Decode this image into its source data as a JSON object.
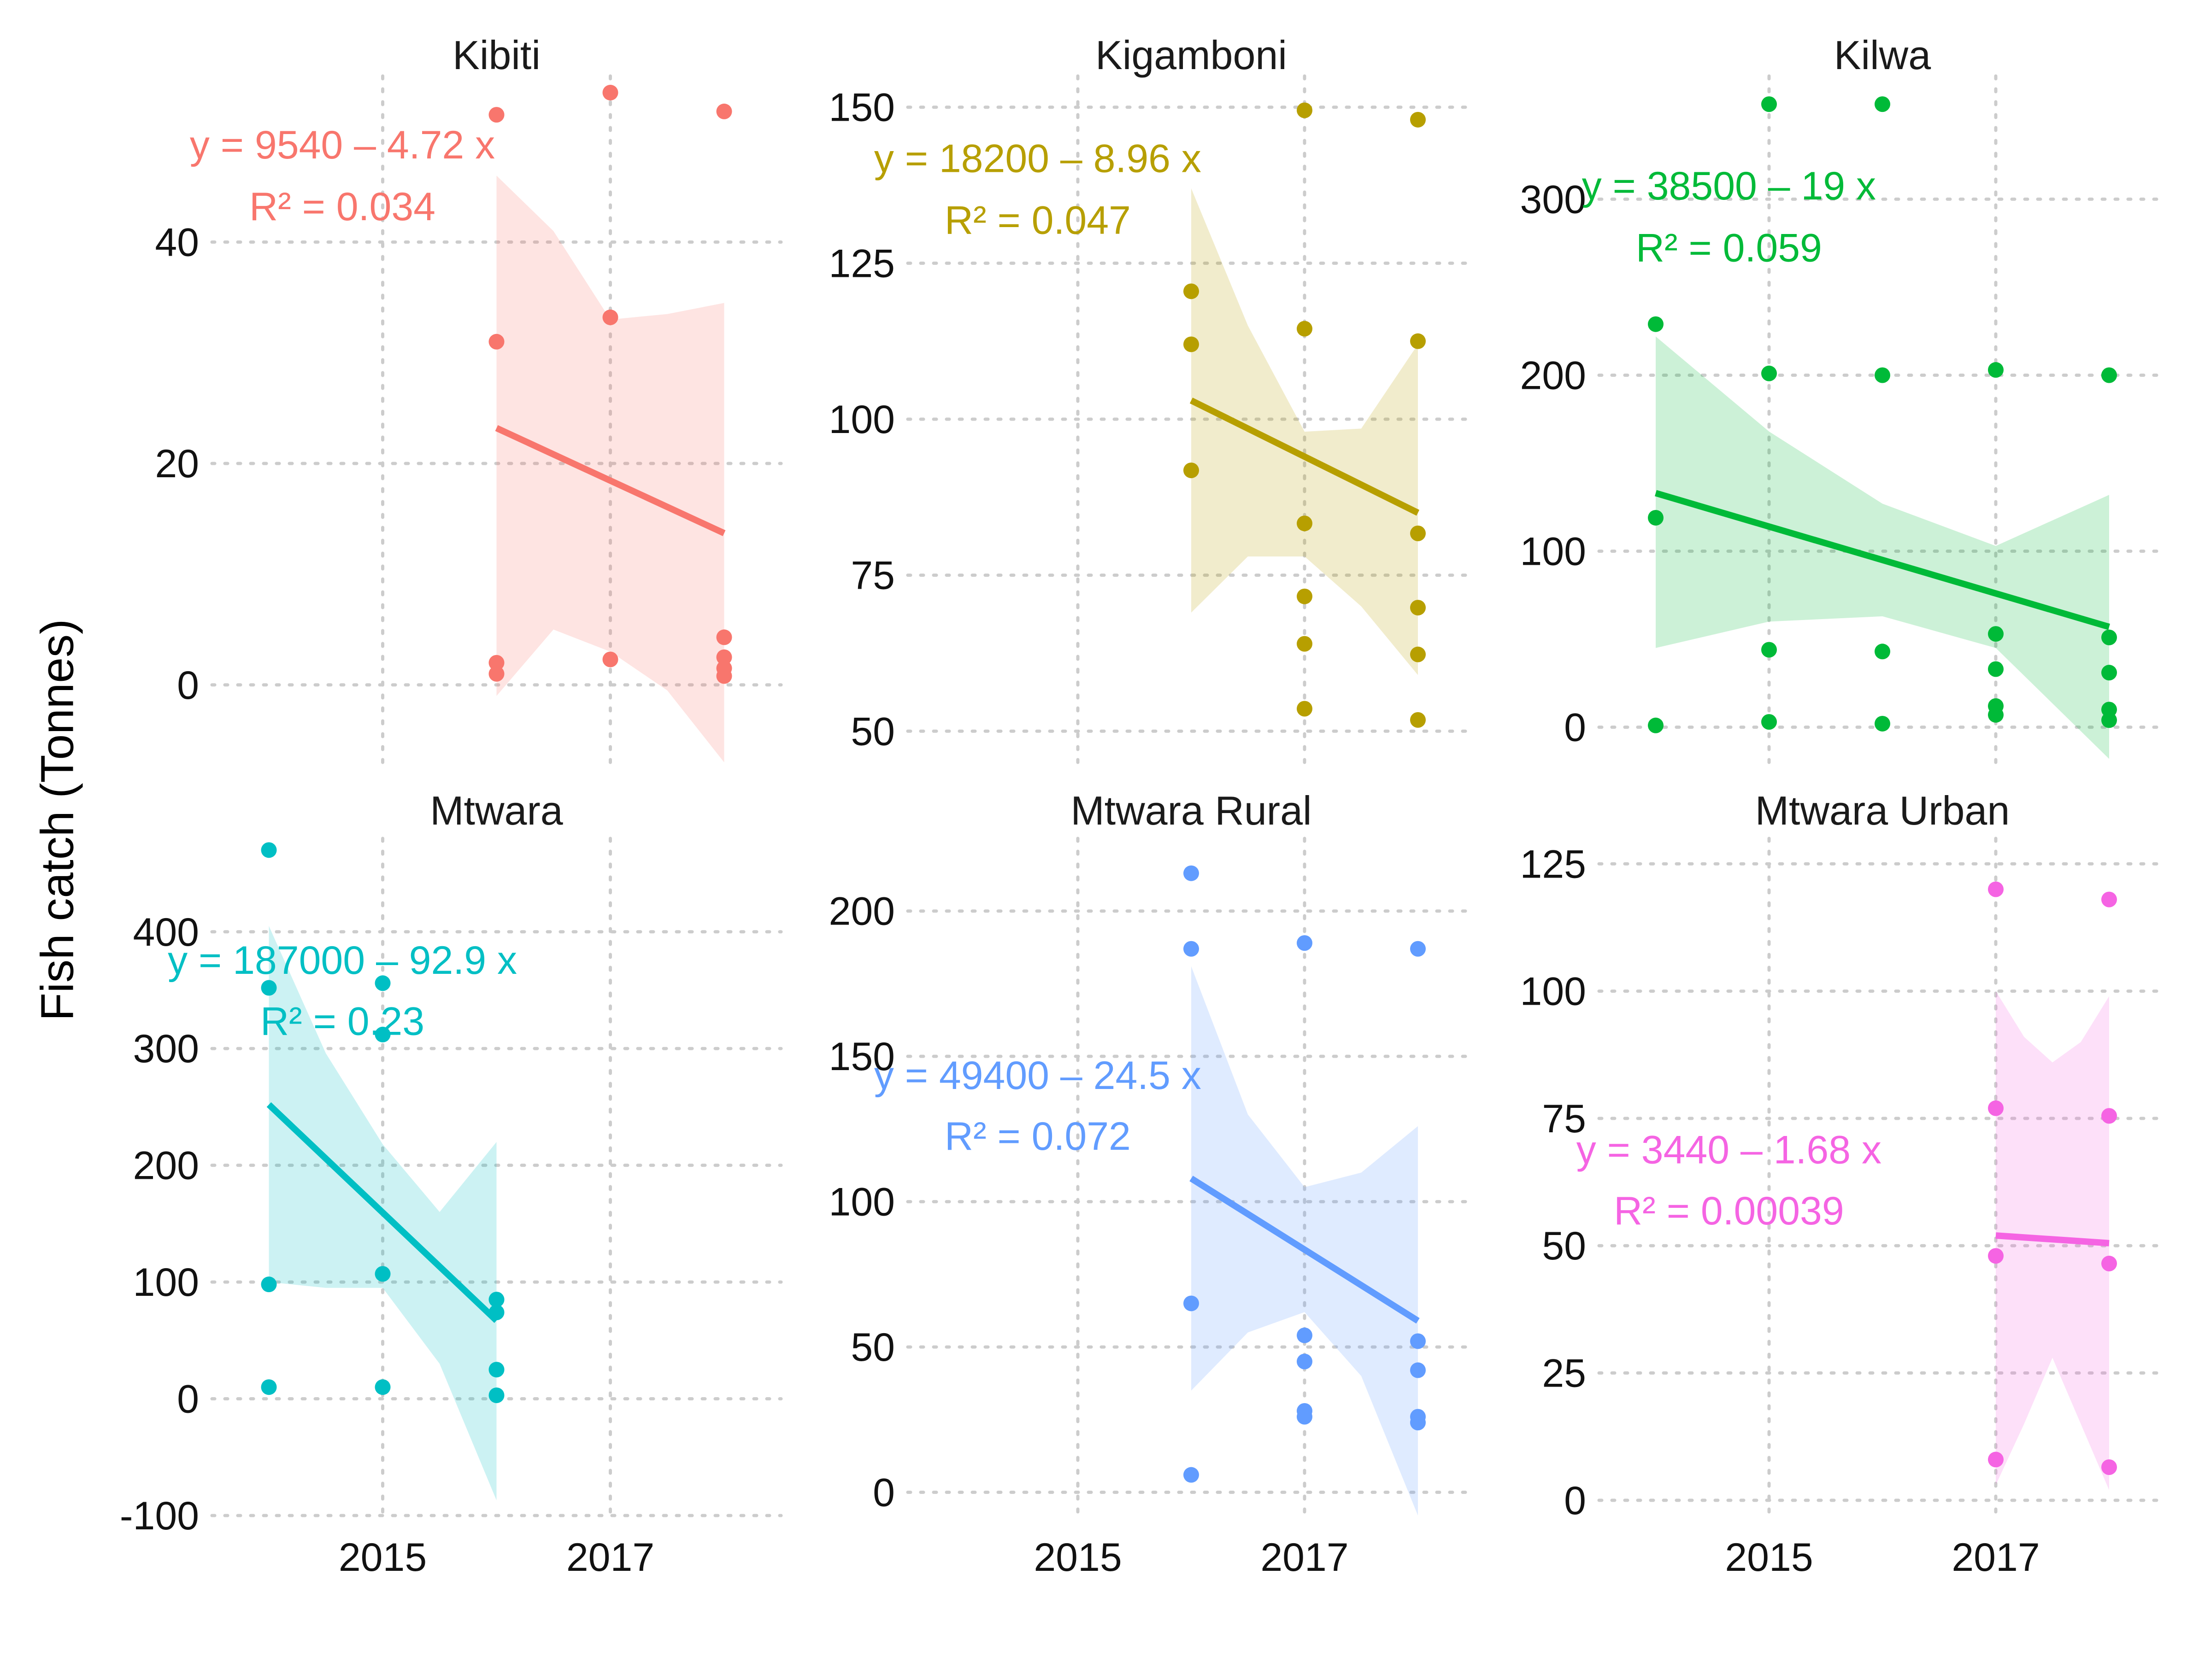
{
  "ylabel": "Fish catch (Tonnes)",
  "chart_data": [
    {
      "type": "scatter",
      "title": "Kibiti",
      "color": "#F8766D",
      "xlim": [
        2013.5,
        2018.5
      ],
      "ylim": [
        -7,
        55
      ],
      "yticks": [
        0,
        20,
        40
      ],
      "ytick_labels": [
        "0",
        "20",
        "40"
      ],
      "xticks": [
        2015,
        2017
      ],
      "xtick_labels": [],
      "points": [
        {
          "x": 2016,
          "y": 51.5
        },
        {
          "x": 2016,
          "y": 31
        },
        {
          "x": 2016,
          "y": 2
        },
        {
          "x": 2016,
          "y": 1
        },
        {
          "x": 2017,
          "y": 53.5
        },
        {
          "x": 2017,
          "y": 33.2
        },
        {
          "x": 2017,
          "y": 2.3
        },
        {
          "x": 2018,
          "y": 51.8
        },
        {
          "x": 2018,
          "y": 4.3
        },
        {
          "x": 2018,
          "y": 2.5
        },
        {
          "x": 2018,
          "y": 1.5
        },
        {
          "x": 2018,
          "y": 0.8
        }
      ],
      "fit": {
        "x": [
          2016,
          2018
        ],
        "y": [
          23.2,
          13.7
        ]
      },
      "ci": {
        "x": [
          2016,
          2016.5,
          2017,
          2017.5,
          2018
        ],
        "lower": [
          -1,
          5,
          3,
          -0.5,
          -7
        ],
        "upper": [
          46,
          41,
          33,
          33.5,
          34.5
        ]
      },
      "equation": "y = 9540 – 4.72 x",
      "r2": "R² = 0.034"
    },
    {
      "type": "scatter",
      "title": "Kigamboni",
      "color": "#B79F00",
      "xlim": [
        2013.5,
        2018.5
      ],
      "ylim": [
        45,
        155
      ],
      "yticks": [
        50,
        75,
        100,
        125,
        150
      ],
      "ytick_labels": [
        "50",
        "75",
        "100",
        "125",
        "150"
      ],
      "xticks": [
        2015,
        2017
      ],
      "xtick_labels": [],
      "points": [
        {
          "x": 2016,
          "y": 120.5
        },
        {
          "x": 2016,
          "y": 112
        },
        {
          "x": 2016,
          "y": 91.8
        },
        {
          "x": 2017,
          "y": 149.5
        },
        {
          "x": 2017,
          "y": 114.5
        },
        {
          "x": 2017,
          "y": 83.3
        },
        {
          "x": 2017,
          "y": 71.6
        },
        {
          "x": 2017,
          "y": 64
        },
        {
          "x": 2017,
          "y": 53.6
        },
        {
          "x": 2018,
          "y": 148
        },
        {
          "x": 2018,
          "y": 112.5
        },
        {
          "x": 2018,
          "y": 81.7
        },
        {
          "x": 2018,
          "y": 69.8
        },
        {
          "x": 2018,
          "y": 62.3
        },
        {
          "x": 2018,
          "y": 51.8
        }
      ],
      "fit": {
        "x": [
          2016,
          2018
        ],
        "y": [
          103,
          85
        ]
      },
      "ci": {
        "x": [
          2016,
          2016.5,
          2017,
          2017.5,
          2018
        ],
        "lower": [
          69,
          78,
          78,
          70,
          59
        ],
        "upper": [
          137,
          115,
          98,
          98.5,
          112
        ]
      },
      "equation": "y = 18200 – 8.96 x",
      "r2": "R² = 0.047"
    },
    {
      "type": "scatter",
      "title": "Kilwa",
      "color": "#00BA38",
      "xlim": [
        2013.5,
        2018.5
      ],
      "ylim": [
        -20,
        370
      ],
      "yticks": [
        0,
        100,
        200,
        300
      ],
      "ytick_labels": [
        "0",
        "100",
        "200",
        "300"
      ],
      "xticks": [
        2015,
        2017
      ],
      "xtick_labels": [],
      "points": [
        {
          "x": 2014,
          "y": 229
        },
        {
          "x": 2014,
          "y": 119
        },
        {
          "x": 2014,
          "y": 1
        },
        {
          "x": 2015,
          "y": 354
        },
        {
          "x": 2015,
          "y": 201
        },
        {
          "x": 2015,
          "y": 44
        },
        {
          "x": 2015,
          "y": 3
        },
        {
          "x": 2016,
          "y": 354
        },
        {
          "x": 2016,
          "y": 200
        },
        {
          "x": 2016,
          "y": 43
        },
        {
          "x": 2016,
          "y": 2
        },
        {
          "x": 2017,
          "y": 203
        },
        {
          "x": 2017,
          "y": 53
        },
        {
          "x": 2017,
          "y": 33
        },
        {
          "x": 2017,
          "y": 12
        },
        {
          "x": 2017,
          "y": 7
        },
        {
          "x": 2018,
          "y": 200
        },
        {
          "x": 2018,
          "y": 51
        },
        {
          "x": 2018,
          "y": 31
        },
        {
          "x": 2018,
          "y": 10
        },
        {
          "x": 2018,
          "y": 4
        }
      ],
      "fit": {
        "x": [
          2014,
          2018
        ],
        "y": [
          133,
          57
        ]
      },
      "ci": {
        "x": [
          2014,
          2015,
          2016,
          2017,
          2018
        ],
        "lower": [
          45,
          60,
          63,
          45,
          -18
        ],
        "upper": [
          222,
          168,
          127,
          103,
          132
        ]
      },
      "equation": "y = 38500 – 19 x",
      "r2": "R² = 0.059"
    },
    {
      "type": "scatter",
      "title": "Mtwara",
      "color": "#00BFC4",
      "xlim": [
        2013.5,
        2018.5
      ],
      "ylim": [
        -100,
        480
      ],
      "yticks": [
        -100,
        0,
        100,
        200,
        300,
        400
      ],
      "ytick_labels": [
        "-100",
        "0",
        "100",
        "200",
        "300",
        "400"
      ],
      "xticks": [
        2015,
        2017
      ],
      "xtick_labels": [
        "2015",
        "2017"
      ],
      "points": [
        {
          "x": 2014,
          "y": 470
        },
        {
          "x": 2014,
          "y": 352
        },
        {
          "x": 2014,
          "y": 98
        },
        {
          "x": 2014,
          "y": 10
        },
        {
          "x": 2015,
          "y": 356
        },
        {
          "x": 2015,
          "y": 312
        },
        {
          "x": 2015,
          "y": 107
        },
        {
          "x": 2015,
          "y": 10
        },
        {
          "x": 2016,
          "y": 85
        },
        {
          "x": 2016,
          "y": 74
        },
        {
          "x": 2016,
          "y": 25
        },
        {
          "x": 2016,
          "y": 3
        }
      ],
      "fit": {
        "x": [
          2014,
          2016
        ],
        "y": [
          252,
          67
        ]
      },
      "ci": {
        "x": [
          2014,
          2014.5,
          2015,
          2015.5,
          2016
        ],
        "lower": [
          100,
          95,
          95,
          30,
          -87
        ],
        "upper": [
          405,
          296,
          218,
          160,
          220
        ]
      },
      "equation": "y = 187000 – 92.9 x",
      "r2": "R² = 0.23"
    },
    {
      "type": "scatter",
      "title": "Mtwara Rural",
      "color": "#619CFF",
      "xlim": [
        2013.5,
        2018.5
      ],
      "ylim": [
        -8,
        225
      ],
      "yticks": [
        0,
        50,
        100,
        150,
        200
      ],
      "ytick_labels": [
        "0",
        "50",
        "100",
        "150",
        "200"
      ],
      "xticks": [
        2015,
        2017
      ],
      "xtick_labels": [
        "2015",
        "2017"
      ],
      "points": [
        {
          "x": 2016,
          "y": 213
        },
        {
          "x": 2016,
          "y": 187
        },
        {
          "x": 2016,
          "y": 65
        },
        {
          "x": 2016,
          "y": 6
        },
        {
          "x": 2017,
          "y": 189
        },
        {
          "x": 2017,
          "y": 54
        },
        {
          "x": 2017,
          "y": 45
        },
        {
          "x": 2017,
          "y": 28
        },
        {
          "x": 2017,
          "y": 26
        },
        {
          "x": 2018,
          "y": 187
        },
        {
          "x": 2018,
          "y": 52
        },
        {
          "x": 2018,
          "y": 42
        },
        {
          "x": 2018,
          "y": 26
        },
        {
          "x": 2018,
          "y": 24
        }
      ],
      "fit": {
        "x": [
          2016,
          2018
        ],
        "y": [
          108,
          59
        ]
      },
      "ci": {
        "x": [
          2016,
          2016.5,
          2017,
          2017.5,
          2018
        ],
        "lower": [
          35,
          55,
          62,
          40,
          -8
        ],
        "upper": [
          181,
          130,
          105,
          110,
          126
        ]
      },
      "equation": "y = 49400 – 24.5 x",
      "r2": "R² = 0.072"
    },
    {
      "type": "scatter",
      "title": "Mtwara Urban",
      "color": "#F564E3",
      "xlim": [
        2013.5,
        2018.5
      ],
      "ylim": [
        -3,
        130
      ],
      "yticks": [
        0,
        25,
        50,
        75,
        100,
        125
      ],
      "ytick_labels": [
        "0",
        "25",
        "50",
        "75",
        "100",
        "125"
      ],
      "xticks": [
        2015,
        2017
      ],
      "xtick_labels": [
        "2015",
        "2017"
      ],
      "points": [
        {
          "x": 2017,
          "y": 120
        },
        {
          "x": 2017,
          "y": 77
        },
        {
          "x": 2017,
          "y": 48
        },
        {
          "x": 2017,
          "y": 8
        },
        {
          "x": 2018,
          "y": 118
        },
        {
          "x": 2018,
          "y": 75.5
        },
        {
          "x": 2018,
          "y": 46.5
        },
        {
          "x": 2018,
          "y": 6.5
        }
      ],
      "fit": {
        "x": [
          2017,
          2018
        ],
        "y": [
          52,
          50.5
        ]
      },
      "ci": {
        "x": [
          2017,
          2017.25,
          2017.5,
          2017.75,
          2018
        ],
        "lower": [
          3,
          15,
          28,
          15,
          2
        ],
        "upper": [
          100,
          91,
          86,
          90,
          99
        ]
      },
      "equation": "y = 3440 – 1.68 x",
      "r2": "R² = 0.00039"
    }
  ]
}
